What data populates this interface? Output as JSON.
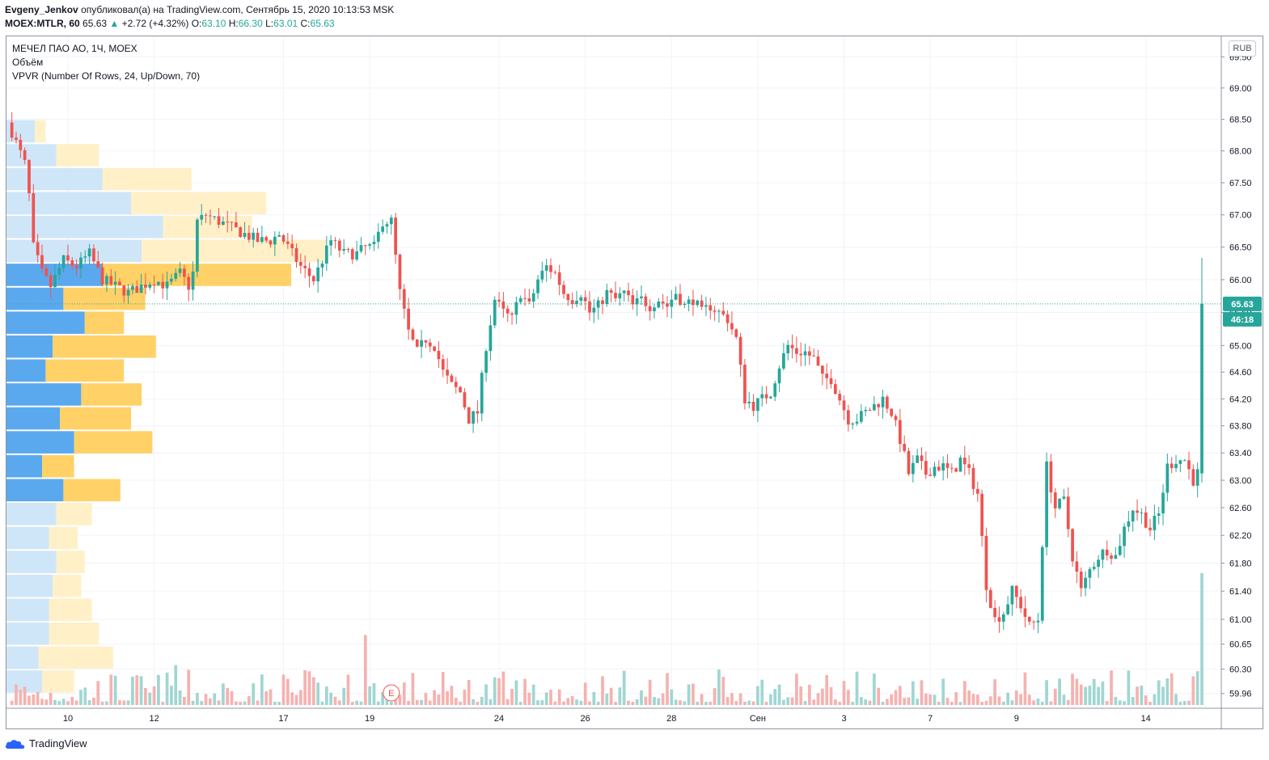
{
  "header": {
    "author": "Evgeny_Jenkov",
    "published_text": "опубликовал(а) на TradingView.com, Сентябрь 15, 2020 10:13:53 MSK",
    "symbol": "MOEX:MTLR, 60",
    "last": "65.63",
    "change": "+2.72 (+4.32%)",
    "o_label": "O:",
    "o_value": "63.10",
    "h_label": "H:",
    "h_value": "66.30",
    "l_label": "L:",
    "l_value": "63.01",
    "c_label": "C:",
    "c_value": "65.63"
  },
  "legend": {
    "title": "МЕЧЕЛ ПАО АО, 1Ч, MOEX",
    "volume": "Объём",
    "vpvr": "VPVR (Number Of Rows, 24, Up/Down, 70)"
  },
  "currency": "RUB",
  "footer": {
    "brand": "TradingView"
  },
  "colors": {
    "up": "#26a69a",
    "down": "#ef5350",
    "vol_up": "#a0d6d2",
    "vol_down": "#f5b2b0",
    "vpvr_up": "#64b5f6",
    "vpvr_up_va": "#5aa9ef",
    "vpvr_down": "#ffd166",
    "vpvr_up_light": "#cfe6f9",
    "vpvr_down_light": "#fff0c8"
  },
  "chart_data": {
    "type": "candlestick",
    "y_axis": {
      "ticks": [
        59.96,
        60.3,
        60.65,
        61.0,
        61.4,
        61.8,
        62.2,
        62.6,
        63.0,
        63.4,
        63.8,
        64.2,
        64.6,
        65.0,
        65.5,
        66.0,
        66.5,
        67.0,
        67.5,
        68.0,
        68.5,
        69.0,
        69.5
      ],
      "tick_labels": [
        "59.96",
        "60.30",
        "60.65",
        "61.00",
        "61.40",
        "61.80",
        "62.20",
        "62.60",
        "63.00",
        "63.40",
        "63.80",
        "64.20",
        "64.60",
        "65.00",
        "65.50",
        "66.00",
        "66.50",
        "67.00",
        "67.50",
        "68.00",
        "68.50",
        "69.00",
        "69.50"
      ],
      "scale": "log",
      "range": [
        59.8,
        69.7
      ]
    },
    "x_axis": {
      "tick_labels": [
        "10",
        "12",
        "17",
        "19",
        "24",
        "26",
        "28",
        "Сен",
        "3",
        "7",
        "9",
        "14"
      ],
      "tick_bar_index": [
        13,
        33,
        63,
        83,
        113,
        133,
        153,
        173,
        193,
        213,
        233,
        263
      ]
    },
    "last_price": {
      "value": 65.63,
      "label": "65.63",
      "countdown": "46:18"
    },
    "earnings_marker": {
      "label": "E",
      "bar_index": 88
    },
    "close_path": [
      [
        0,
        68.3
      ],
      [
        3,
        67.8
      ],
      [
        4,
        67.3
      ],
      [
        5,
        66.5
      ],
      [
        7,
        66.1
      ],
      [
        9,
        65.9
      ],
      [
        12,
        66.3
      ],
      [
        15,
        66.2
      ],
      [
        18,
        66.4
      ],
      [
        21,
        66.0
      ],
      [
        24,
        65.9
      ],
      [
        27,
        65.8
      ],
      [
        30,
        65.9
      ],
      [
        33,
        66.0
      ],
      [
        36,
        65.9
      ],
      [
        39,
        66.1
      ],
      [
        41,
        65.9
      ],
      [
        42,
        66.1
      ],
      [
        43,
        66.9
      ],
      [
        45,
        67.0
      ],
      [
        48,
        66.9
      ],
      [
        51,
        66.8
      ],
      [
        54,
        66.7
      ],
      [
        57,
        66.6
      ],
      [
        60,
        66.6
      ],
      [
        62,
        66.7
      ],
      [
        63,
        66.6
      ],
      [
        65,
        66.4
      ],
      [
        67,
        66.2
      ],
      [
        70,
        66.0
      ],
      [
        72,
        66.3
      ],
      [
        74,
        66.6
      ],
      [
        77,
        66.4
      ],
      [
        80,
        66.4
      ],
      [
        82,
        66.5
      ],
      [
        84,
        66.5
      ],
      [
        86,
        66.9
      ],
      [
        88,
        66.9
      ],
      [
        90,
        65.8
      ],
      [
        92,
        65.2
      ],
      [
        94,
        64.9
      ],
      [
        96,
        65.1
      ],
      [
        98,
        65.0
      ],
      [
        100,
        64.6
      ],
      [
        102,
        64.4
      ],
      [
        104,
        64.3
      ],
      [
        106,
        63.9
      ],
      [
        108,
        64.0
      ],
      [
        110,
        65.0
      ],
      [
        112,
        65.7
      ],
      [
        114,
        65.5
      ],
      [
        116,
        65.4
      ],
      [
        118,
        65.8
      ],
      [
        120,
        65.6
      ],
      [
        122,
        66.0
      ],
      [
        124,
        66.2
      ],
      [
        126,
        66.1
      ],
      [
        128,
        65.8
      ],
      [
        130,
        65.7
      ],
      [
        132,
        65.8
      ],
      [
        134,
        65.5
      ],
      [
        136,
        65.6
      ],
      [
        138,
        65.8
      ],
      [
        140,
        65.7
      ],
      [
        142,
        65.8
      ],
      [
        144,
        65.6
      ],
      [
        146,
        65.7
      ],
      [
        148,
        65.6
      ],
      [
        150,
        65.7
      ],
      [
        152,
        65.6
      ],
      [
        154,
        65.8
      ],
      [
        156,
        65.6
      ],
      [
        158,
        65.7
      ],
      [
        160,
        65.5
      ],
      [
        162,
        65.6
      ],
      [
        164,
        65.5
      ],
      [
        166,
        65.4
      ],
      [
        168,
        65.1
      ],
      [
        170,
        64.2
      ],
      [
        172,
        64.1
      ],
      [
        174,
        64.2
      ],
      [
        176,
        64.3
      ],
      [
        178,
        64.7
      ],
      [
        180,
        65.0
      ],
      [
        182,
        64.9
      ],
      [
        184,
        64.9
      ],
      [
        186,
        64.8
      ],
      [
        188,
        64.5
      ],
      [
        190,
        64.5
      ],
      [
        192,
        64.2
      ],
      [
        194,
        63.9
      ],
      [
        196,
        63.9
      ],
      [
        198,
        64.0
      ],
      [
        200,
        64.1
      ],
      [
        202,
        64.2
      ],
      [
        204,
        64.0
      ],
      [
        206,
        63.6
      ],
      [
        208,
        63.1
      ],
      [
        210,
        63.3
      ],
      [
        212,
        63.1
      ],
      [
        214,
        63.2
      ],
      [
        216,
        63.2
      ],
      [
        218,
        63.1
      ],
      [
        220,
        63.3
      ],
      [
        222,
        63.1
      ],
      [
        224,
        62.8
      ],
      [
        226,
        61.5
      ],
      [
        228,
        61.0
      ],
      [
        230,
        61.1
      ],
      [
        232,
        61.4
      ],
      [
        234,
        61.2
      ],
      [
        236,
        60.9
      ],
      [
        238,
        61.0
      ],
      [
        240,
        63.2
      ],
      [
        242,
        62.6
      ],
      [
        244,
        62.7
      ],
      [
        246,
        61.9
      ],
      [
        248,
        61.4
      ],
      [
        250,
        61.7
      ],
      [
        252,
        61.9
      ],
      [
        254,
        62.0
      ],
      [
        256,
        61.9
      ],
      [
        258,
        62.3
      ],
      [
        260,
        62.6
      ],
      [
        262,
        62.5
      ],
      [
        264,
        62.3
      ],
      [
        266,
        62.5
      ],
      [
        268,
        63.2
      ],
      [
        270,
        63.3
      ],
      [
        272,
        63.3
      ],
      [
        274,
        63.0
      ],
      [
        275,
        63.1
      ],
      [
        276,
        65.63
      ]
    ],
    "volume_profile": {
      "price_range": [
        59.96,
        68.5
      ],
      "rows": 24,
      "rows_up_pct": [
        10,
        9,
        12,
        12,
        13,
        14,
        12,
        14,
        16,
        10,
        19,
        15,
        21,
        11,
        13,
        22,
        16,
        27,
        38,
        44,
        35,
        27,
        14,
        8
      ],
      "rows_down_pct": [
        9,
        21,
        14,
        12,
        8,
        8,
        8,
        10,
        16,
        9,
        22,
        20,
        17,
        22,
        29,
        11,
        23,
        53,
        52,
        25,
        38,
        25,
        12,
        3
      ],
      "value_area_rows": [
        8,
        17
      ]
    }
  }
}
